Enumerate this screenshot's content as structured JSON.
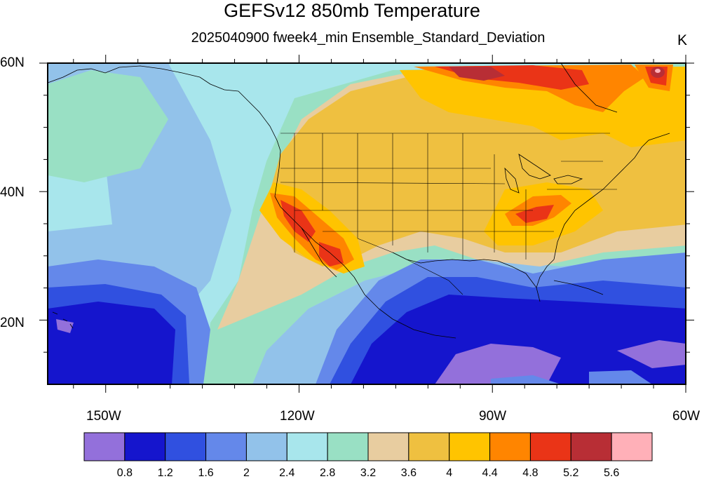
{
  "title": "GEFSv12 850mb Temperature",
  "subtitle": "2025040900 fweek4_min Ensemble_Standard_Deviation",
  "units": "K",
  "axes": {
    "x_ticks": [
      "150W",
      "120W",
      "90W",
      "60W"
    ],
    "y_ticks": [
      "60N",
      "40N",
      "20N"
    ],
    "lon_range": [
      -159,
      -60
    ],
    "lat_range": [
      10,
      60
    ]
  },
  "colorbar": {
    "labels": [
      "0.8",
      "1.2",
      "1.6",
      "2",
      "2.4",
      "2.8",
      "3.2",
      "3.6",
      "4",
      "4.4",
      "4.8",
      "5.2",
      "5.6"
    ],
    "colors": [
      "#9370db",
      "#1515cd",
      "#3050e0",
      "#6488ea",
      "#92c2ea",
      "#a8e6ec",
      "#99e0c4",
      "#e8cda0",
      "#efc040",
      "#ffc400",
      "#ff8500",
      "#ea3417",
      "#b82e35",
      "#ffb0b8"
    ]
  }
}
